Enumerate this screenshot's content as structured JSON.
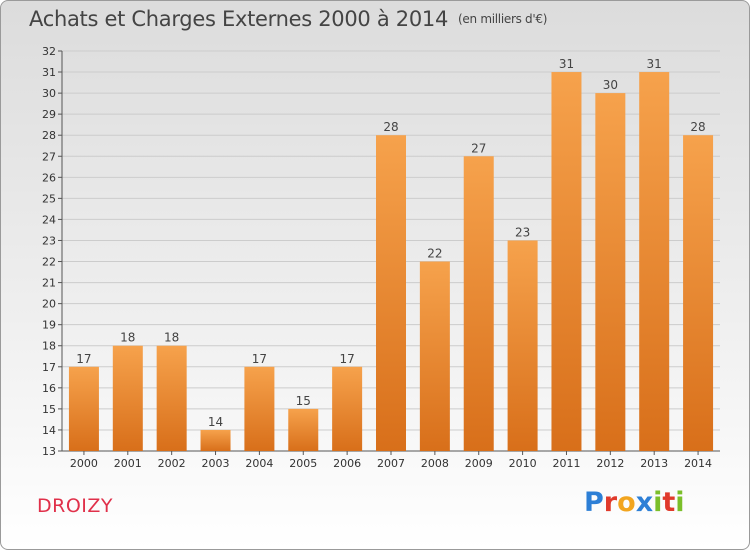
{
  "title": "Achats et Charges Externes 2000 à 2014",
  "unit": "(en milliers d'€)",
  "commune": "DROIZY",
  "logo": {
    "letters": [
      "P",
      "r",
      "o",
      "x",
      "i",
      "t",
      "i"
    ],
    "colors": [
      "#2d7fd6",
      "#e03a2b",
      "#f2a51f",
      "#2d7fd6",
      "#7bbf2a",
      "#e03a2b",
      "#7bbf2a"
    ]
  },
  "colors": {
    "bar_light": "#f6a24c",
    "bar_dark": "#d86f1a",
    "axis": "#555555",
    "grid": "#cccccc"
  },
  "chart_data": {
    "type": "bar",
    "categories": [
      "2000",
      "2001",
      "2002",
      "2003",
      "2004",
      "2005",
      "2006",
      "2007",
      "2008",
      "2009",
      "2010",
      "2011",
      "2012",
      "2013",
      "2014"
    ],
    "values": [
      17,
      18,
      18,
      14,
      17,
      15,
      17,
      28,
      22,
      27,
      23,
      31,
      30,
      31,
      28
    ],
    "title": "Achats et Charges Externes 2000 à 2014",
    "xlabel": "",
    "ylabel": "",
    "ylim": [
      13,
      32
    ],
    "yticks": [
      13,
      14,
      15,
      16,
      17,
      18,
      19,
      20,
      21,
      22,
      23,
      24,
      25,
      26,
      27,
      28,
      29,
      30,
      31,
      32
    ],
    "grid": true,
    "data_labels": true
  }
}
